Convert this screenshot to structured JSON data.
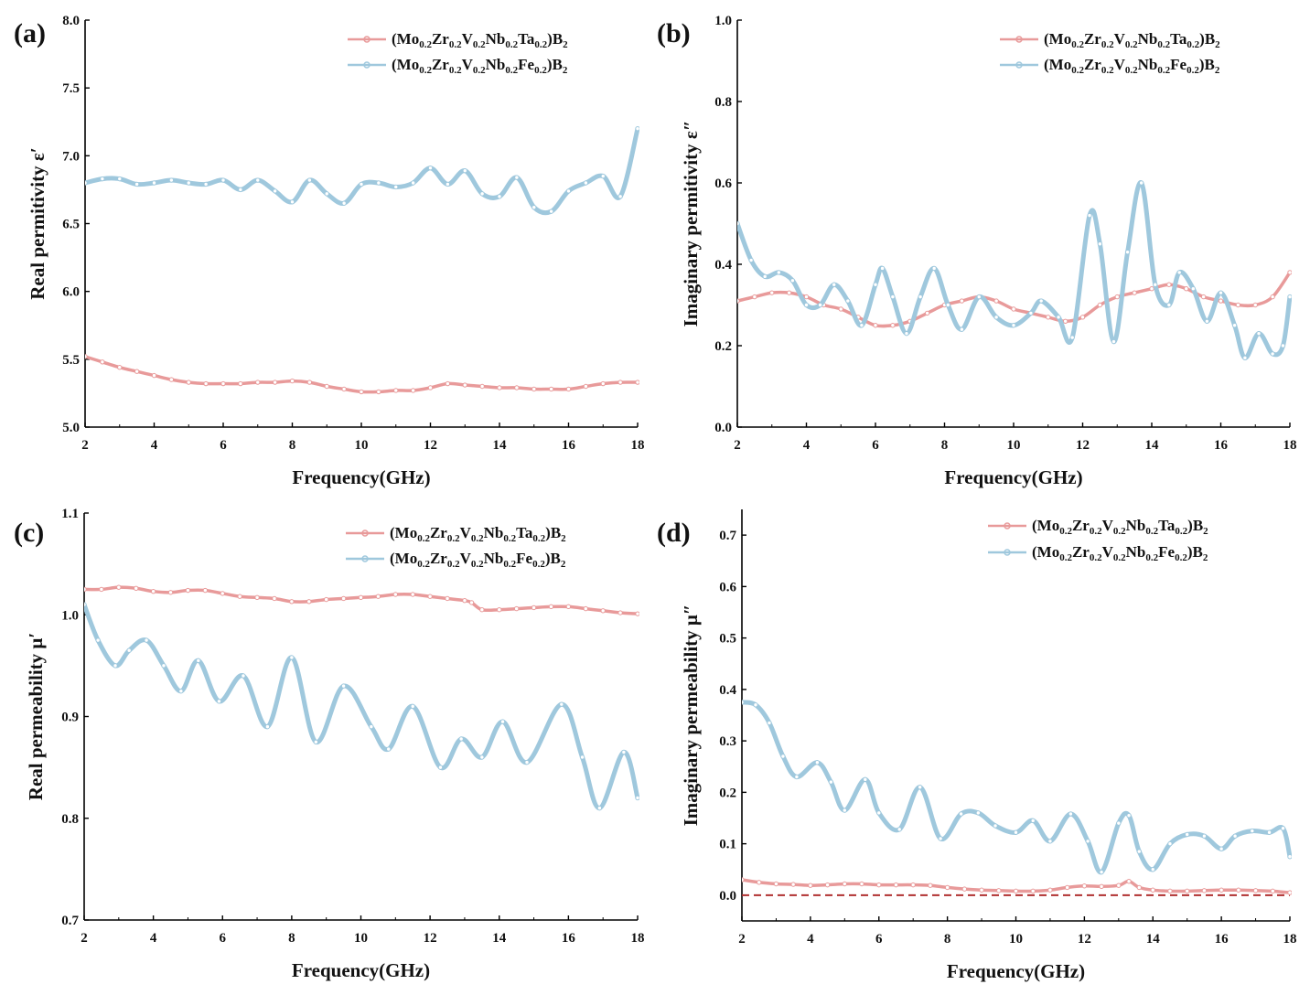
{
  "figure": {
    "colors": {
      "ta": "#e89a9a",
      "fe": "#9fc8dd",
      "ref": "#b03030",
      "axis": "#000000"
    },
    "legend_parts": {
      "ta": [
        "(Mo",
        "0.2",
        "Zr",
        "0.2",
        "V",
        "0.2",
        "Nb",
        "0.2",
        "Ta",
        "0.2",
        ")B",
        "2"
      ],
      "fe": [
        "(Mo",
        "0.2",
        "Zr",
        "0.2",
        "V",
        "0.2",
        "Nb",
        "0.2",
        "Fe",
        "0.2",
        ")B",
        "2"
      ]
    }
  },
  "chart_data": [
    {
      "panel": "(a)",
      "type": "line",
      "xlabel": "Frequency(GHz)",
      "ylabel": "Real permitivity  ε′",
      "xlim": [
        2,
        18
      ],
      "ylim": [
        5.0,
        8.0
      ],
      "xticks": [
        "2",
        "4",
        "6",
        "8",
        "10",
        "12",
        "14",
        "16",
        "18"
      ],
      "yticks": [
        "5.0",
        "5.5",
        "6.0",
        "6.5",
        "7.0",
        "7.5",
        "8.0"
      ],
      "series": [
        {
          "name": "(Mo0.2Zr0.2V0.2Nb0.2Ta0.2)B2",
          "color_key": "ta",
          "x": [
            2,
            2.5,
            3,
            3.5,
            4,
            4.5,
            5,
            5.5,
            6,
            6.5,
            7,
            7.5,
            8,
            8.5,
            9,
            9.5,
            10,
            10.5,
            11,
            11.5,
            12,
            12.5,
            13,
            13.5,
            14,
            14.5,
            15,
            15.5,
            16,
            16.5,
            17,
            17.5,
            18
          ],
          "y": [
            5.52,
            5.48,
            5.44,
            5.41,
            5.38,
            5.35,
            5.33,
            5.32,
            5.32,
            5.32,
            5.33,
            5.33,
            5.34,
            5.33,
            5.3,
            5.28,
            5.26,
            5.26,
            5.27,
            5.27,
            5.29,
            5.32,
            5.31,
            5.3,
            5.29,
            5.29,
            5.28,
            5.28,
            5.28,
            5.3,
            5.32,
            5.33,
            5.33
          ]
        },
        {
          "name": "(Mo0.2Zr0.2V0.2Nb0.2Fe0.2)B2",
          "color_key": "fe",
          "x": [
            2,
            2.5,
            3,
            3.5,
            4,
            4.5,
            5,
            5.5,
            6,
            6.5,
            7,
            7.5,
            8,
            8.5,
            9,
            9.5,
            10,
            10.5,
            11,
            11.5,
            12,
            12.5,
            13,
            13.5,
            14,
            14.5,
            15,
            15.5,
            16,
            16.5,
            17,
            17.5,
            18
          ],
          "y": [
            6.8,
            6.83,
            6.83,
            6.79,
            6.8,
            6.82,
            6.8,
            6.79,
            6.82,
            6.75,
            6.82,
            6.74,
            6.66,
            6.82,
            6.72,
            6.65,
            6.79,
            6.8,
            6.77,
            6.8,
            6.91,
            6.79,
            6.89,
            6.72,
            6.7,
            6.84,
            6.62,
            6.59,
            6.74,
            6.8,
            6.85,
            6.7,
            7.2
          ]
        }
      ]
    },
    {
      "panel": "(b)",
      "type": "line",
      "xlabel": "Frequency(GHz)",
      "ylabel": "Imaginary permitivity  ε″",
      "xlim": [
        2,
        18
      ],
      "ylim": [
        0.0,
        1.0
      ],
      "xticks": [
        "2",
        "4",
        "6",
        "8",
        "10",
        "12",
        "14",
        "16",
        "18"
      ],
      "yticks": [
        "0.0",
        "0.2",
        "0.4",
        "0.6",
        "0.8",
        "1.0"
      ],
      "series": [
        {
          "name": "(Mo0.2Zr0.2V0.2Nb0.2Ta0.2)B2",
          "color_key": "ta",
          "x": [
            2,
            2.5,
            3,
            3.5,
            4,
            4.5,
            5,
            5.5,
            6,
            6.5,
            7,
            7.5,
            8,
            8.5,
            9,
            9.5,
            10,
            10.5,
            11,
            11.5,
            12,
            12.5,
            13,
            13.5,
            14,
            14.5,
            15,
            15.5,
            16,
            16.5,
            17,
            17.5,
            18
          ],
          "y": [
            0.31,
            0.32,
            0.33,
            0.33,
            0.32,
            0.3,
            0.29,
            0.27,
            0.25,
            0.25,
            0.26,
            0.28,
            0.3,
            0.31,
            0.32,
            0.31,
            0.29,
            0.28,
            0.27,
            0.26,
            0.27,
            0.3,
            0.32,
            0.33,
            0.34,
            0.35,
            0.34,
            0.32,
            0.31,
            0.3,
            0.3,
            0.32,
            0.38
          ]
        },
        {
          "name": "(Mo0.2Zr0.2V0.2Nb0.2Fe0.2)B2",
          "color_key": "fe",
          "x": [
            2,
            2.4,
            2.8,
            3.2,
            3.6,
            4,
            4.4,
            4.8,
            5.2,
            5.6,
            6,
            6.2,
            6.5,
            6.9,
            7.3,
            7.7,
            8.1,
            8.5,
            9,
            9.5,
            10,
            10.5,
            10.8,
            11.3,
            11.7,
            12.2,
            12.5,
            12.9,
            13.3,
            13.7,
            14.1,
            14.5,
            14.8,
            15.2,
            15.6,
            16,
            16.4,
            16.7,
            17.1,
            17.5,
            17.8,
            18
          ],
          "y": [
            0.5,
            0.41,
            0.37,
            0.38,
            0.36,
            0.3,
            0.3,
            0.35,
            0.31,
            0.25,
            0.35,
            0.39,
            0.32,
            0.23,
            0.32,
            0.39,
            0.3,
            0.24,
            0.32,
            0.27,
            0.25,
            0.28,
            0.31,
            0.27,
            0.22,
            0.52,
            0.45,
            0.21,
            0.43,
            0.6,
            0.35,
            0.3,
            0.38,
            0.34,
            0.26,
            0.33,
            0.25,
            0.17,
            0.23,
            0.18,
            0.2,
            0.32
          ]
        }
      ]
    },
    {
      "panel": "(c)",
      "type": "line",
      "xlabel": "Frequency(GHz)",
      "ylabel": "Real permeability  μ′",
      "xlim": [
        2,
        18
      ],
      "ylim": [
        0.7,
        1.1
      ],
      "xticks": [
        "2",
        "4",
        "6",
        "8",
        "10",
        "12",
        "14",
        "16",
        "18"
      ],
      "yticks": [
        "0.7",
        "0.8",
        "0.9",
        "1.0",
        "1.1"
      ],
      "series": [
        {
          "name": "(Mo0.2Zr0.2V0.2Nb0.2Ta0.2)B2",
          "color_key": "ta",
          "x": [
            2,
            2.5,
            3,
            3.5,
            4,
            4.5,
            5,
            5.5,
            6,
            6.5,
            7,
            7.5,
            8,
            8.5,
            9,
            9.5,
            10,
            10.5,
            11,
            11.5,
            12,
            12.5,
            13,
            13.2,
            13.5,
            14,
            14.5,
            15,
            15.5,
            16,
            16.5,
            17,
            17.5,
            18
          ],
          "y": [
            1.025,
            1.025,
            1.027,
            1.026,
            1.023,
            1.022,
            1.024,
            1.024,
            1.021,
            1.018,
            1.017,
            1.016,
            1.013,
            1.013,
            1.015,
            1.016,
            1.017,
            1.018,
            1.02,
            1.02,
            1.018,
            1.016,
            1.014,
            1.012,
            1.005,
            1.005,
            1.006,
            1.007,
            1.008,
            1.008,
            1.006,
            1.004,
            1.002,
            1.001
          ]
        },
        {
          "name": "(Mo0.2Zr0.2V0.2Nb0.2Fe0.2)B2",
          "color_key": "fe",
          "x": [
            2,
            2.4,
            2.9,
            3.3,
            3.8,
            4.3,
            4.8,
            5.3,
            5.9,
            6.6,
            7.3,
            8,
            8.7,
            9.5,
            10.3,
            10.8,
            11.5,
            12.3,
            12.9,
            13.5,
            14.1,
            14.8,
            15.8,
            16.4,
            16.9,
            17.6,
            18
          ],
          "y": [
            1.01,
            0.975,
            0.95,
            0.965,
            0.975,
            0.95,
            0.925,
            0.955,
            0.915,
            0.94,
            0.89,
            0.958,
            0.875,
            0.93,
            0.89,
            0.868,
            0.91,
            0.85,
            0.878,
            0.86,
            0.895,
            0.855,
            0.912,
            0.86,
            0.81,
            0.865,
            0.82
          ]
        }
      ]
    },
    {
      "panel": "(d)",
      "type": "line",
      "xlabel": "Frequency(GHz)",
      "ylabel": "Imaginary permeability  μ″",
      "xlim": [
        2,
        18
      ],
      "ylim": [
        -0.05,
        0.75
      ],
      "xticks": [
        "2",
        "4",
        "6",
        "8",
        "10",
        "12",
        "14",
        "16",
        "18"
      ],
      "yticks": [
        "0.0",
        "0.1",
        "0.2",
        "0.3",
        "0.4",
        "0.5",
        "0.6",
        "0.7"
      ],
      "reference_line": 0.0,
      "series": [
        {
          "name": "(Mo0.2Zr0.2V0.2Nb0.2Ta0.2)B2",
          "color_key": "ta",
          "x": [
            2,
            2.5,
            3,
            3.5,
            4,
            4.5,
            5,
            5.5,
            6,
            6.5,
            7,
            7.5,
            8,
            8.5,
            9,
            9.5,
            10,
            10.5,
            11,
            11.5,
            12,
            12.5,
            13,
            13.3,
            13.6,
            14,
            14.5,
            15,
            15.5,
            16,
            16.5,
            17,
            17.5,
            18
          ],
          "y": [
            0.03,
            0.025,
            0.022,
            0.021,
            0.019,
            0.02,
            0.022,
            0.022,
            0.02,
            0.02,
            0.02,
            0.019,
            0.015,
            0.012,
            0.01,
            0.009,
            0.008,
            0.008,
            0.01,
            0.015,
            0.018,
            0.017,
            0.019,
            0.027,
            0.015,
            0.01,
            0.008,
            0.008,
            0.009,
            0.01,
            0.01,
            0.009,
            0.008,
            0.005
          ]
        },
        {
          "name": "(Mo0.2Zr0.2V0.2Nb0.2Fe0.2)B2",
          "color_key": "fe",
          "x": [
            2,
            2.4,
            2.8,
            3.2,
            3.6,
            4.2,
            4.6,
            5,
            5.6,
            6,
            6.6,
            7.2,
            7.8,
            8.4,
            8.9,
            9.4,
            10,
            10.5,
            11,
            11.6,
            12.1,
            12.5,
            13,
            13.3,
            13.6,
            14,
            14.5,
            15,
            15.5,
            16,
            16.4,
            16.9,
            17.4,
            17.8,
            18
          ],
          "y": [
            0.375,
            0.37,
            0.335,
            0.27,
            0.23,
            0.258,
            0.22,
            0.165,
            0.225,
            0.16,
            0.128,
            0.21,
            0.11,
            0.158,
            0.16,
            0.135,
            0.122,
            0.145,
            0.105,
            0.158,
            0.105,
            0.045,
            0.14,
            0.155,
            0.085,
            0.05,
            0.1,
            0.118,
            0.115,
            0.09,
            0.115,
            0.125,
            0.122,
            0.13,
            0.075
          ]
        }
      ]
    }
  ]
}
